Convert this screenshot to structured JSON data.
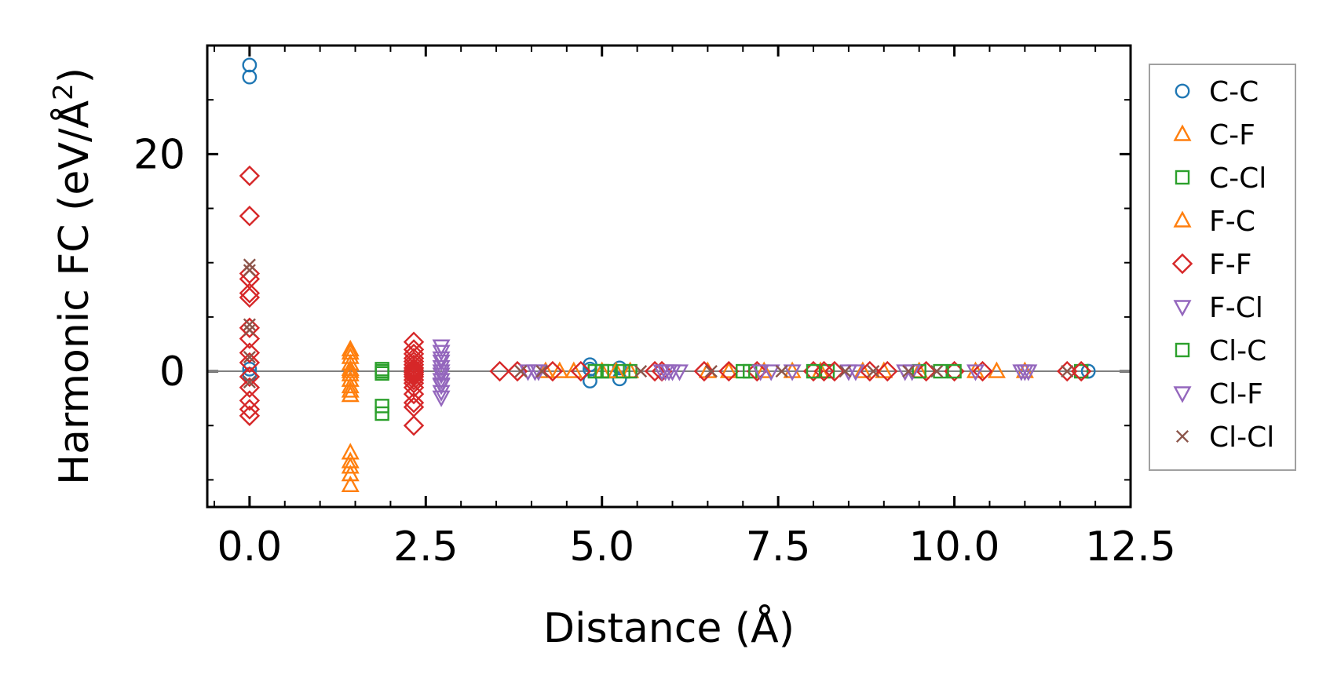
{
  "chart_data": {
    "type": "scatter",
    "xlabel": "Distance (Å)",
    "ylabel": {
      "main": "Harmonic FC (eV/Å",
      "sup": "2",
      "end": ")"
    },
    "xlim": [
      -0.6,
      12.5
    ],
    "ylim": [
      -12.5,
      30
    ],
    "xticks": [
      0.0,
      2.5,
      5.0,
      7.5,
      10.0,
      12.5
    ],
    "xtick_labels": [
      "0.0",
      "2.5",
      "5.0",
      "7.5",
      "10.0",
      "12.5"
    ],
    "yticks": [
      0,
      20
    ],
    "ytick_labels": [
      "0",
      "20"
    ],
    "x_minor_step": 0.5,
    "y_minor_step": 5,
    "zero_line": true,
    "legend_position": "outside-right",
    "series": [
      {
        "name": "C-C",
        "marker": "circle",
        "color": "#1f77b4",
        "x": [
          0,
          0,
          0,
          0,
          4.83,
          4.83,
          4.83,
          5.25,
          5.25,
          11.9
        ],
        "y": [
          28.2,
          27.1,
          0.2,
          -0.3,
          0.6,
          -0.9,
          0.2,
          0.3,
          -0.7,
          0
        ]
      },
      {
        "name": "C-F",
        "marker": "triangle-up",
        "color": "#ff7f0e",
        "x": [
          1.43,
          1.43,
          1.43,
          1.43,
          1.43,
          1.43,
          1.43,
          1.43,
          1.43,
          1.43,
          1.43,
          1.43,
          1.43,
          4.2,
          4.6,
          5.0,
          5.4,
          6.8,
          7.3,
          8.1,
          8.7,
          9.5,
          10.6,
          11.0
        ],
        "y": [
          2.0,
          1.3,
          0.7,
          0.2,
          -0.3,
          -0.8,
          -1.4,
          -2.2,
          -7.5,
          -8.3,
          -8.8,
          -9.5,
          -10.5,
          0,
          0,
          0,
          0,
          0,
          0,
          0,
          0,
          0,
          0,
          0
        ]
      },
      {
        "name": "C-Cl",
        "marker": "square",
        "color": "#2ca02c",
        "x": [
          1.88,
          1.88,
          1.88,
          1.88,
          4.9,
          5.1,
          5.4,
          7.1,
          8.2,
          9.8,
          11.8
        ],
        "y": [
          0.2,
          -0.2,
          -3.2,
          -3.9,
          0,
          0,
          0,
          0,
          0,
          0,
          0
        ]
      },
      {
        "name": "F-C",
        "marker": "triangle-up",
        "color": "#ff7f0e",
        "x": [
          1.43,
          1.43,
          1.43,
          4.4,
          5.2,
          6.5,
          7.7,
          9.0,
          10.3
        ],
        "y": [
          1.7,
          0.0,
          -1.8,
          0,
          0,
          0,
          0,
          0,
          0
        ]
      },
      {
        "name": "F-F",
        "marker": "diamond",
        "color": "#d62728",
        "x": [
          0,
          0,
          0,
          0,
          0,
          0,
          0,
          0,
          0,
          0,
          0,
          0,
          0,
          0,
          0,
          2.33,
          2.33,
          2.33,
          2.33,
          2.33,
          2.33,
          2.33,
          2.33,
          2.33,
          2.33,
          2.33,
          2.33,
          2.33,
          2.33,
          2.33,
          2.33,
          2.33,
          2.33,
          3.55,
          3.8,
          4.3,
          4.7,
          5.75,
          5.85,
          6.45,
          6.8,
          7.2,
          8.0,
          8.15,
          8.3,
          8.8,
          9.05,
          9.6,
          10.0,
          10.4,
          11.6,
          11.8
        ],
        "y": [
          18.0,
          14.3,
          9.0,
          8.5,
          7.2,
          6.8,
          4.0,
          3.0,
          1.7,
          0.8,
          -0.5,
          -1.5,
          -2.7,
          -3.5,
          -4.1,
          2.7,
          2.0,
          1.6,
          1.2,
          0.9,
          0.6,
          0.3,
          0.1,
          -0.1,
          -0.3,
          -0.5,
          -0.8,
          -1.1,
          -1.5,
          -2.1,
          -2.9,
          -3.3,
          -5.0,
          0,
          0,
          0,
          0,
          0,
          0,
          0,
          0,
          0,
          0,
          0,
          0,
          0,
          0,
          0,
          0,
          0,
          0,
          0
        ]
      },
      {
        "name": "F-Cl",
        "marker": "triangle-down",
        "color": "#9467bd",
        "x": [
          2.72,
          2.72,
          2.72,
          2.72,
          2.72,
          2.72,
          2.72,
          2.72,
          2.72,
          3.95,
          4.1,
          5.85,
          5.95,
          6.0,
          6.1,
          7.25,
          7.7,
          8.5,
          9.3,
          10.3,
          10.95,
          11.05
        ],
        "y": [
          2.3,
          1.8,
          0.9,
          0.4,
          -0.3,
          -0.8,
          -1.3,
          -1.9,
          -2.4,
          0,
          0,
          0,
          0,
          0,
          0,
          0,
          0,
          0,
          0,
          0,
          0,
          0
        ]
      },
      {
        "name": "Cl-C",
        "marker": "square",
        "color": "#2ca02c",
        "x": [
          1.88,
          5.0,
          5.3,
          7.0,
          8.0,
          9.5,
          10.0
        ],
        "y": [
          0.0,
          0,
          0,
          0,
          0,
          0,
          0
        ]
      },
      {
        "name": "Cl-F",
        "marker": "triangle-down",
        "color": "#9467bd",
        "x": [
          2.72,
          2.72,
          2.72,
          4.05,
          5.9,
          7.4,
          8.6,
          9.4,
          11.0
        ],
        "y": [
          1.2,
          0.0,
          -1.2,
          0,
          0,
          0,
          0,
          0,
          0
        ]
      },
      {
        "name": "Cl-Cl",
        "marker": "x",
        "color": "#8c564b",
        "x": [
          0,
          0,
          0,
          0,
          0,
          0,
          3.85,
          4.15,
          5.55,
          6.55,
          7.55,
          8.45,
          8.85,
          9.35,
          9.75,
          11.6
        ],
        "y": [
          9.8,
          9.3,
          4.3,
          3.8,
          1.3,
          -1.0,
          0,
          0,
          0,
          0,
          0,
          0,
          0,
          0,
          0,
          0
        ]
      }
    ]
  }
}
